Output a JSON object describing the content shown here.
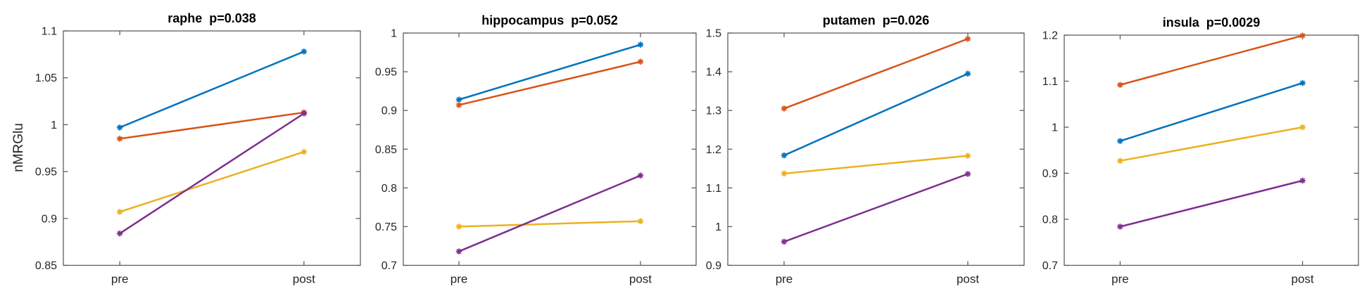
{
  "figure": {
    "background": "#ffffff",
    "axis_color": "#595959",
    "text_color": "#262626"
  },
  "chart_data": [
    {
      "type": "line",
      "region": "raphe",
      "title": "raphe  p=0.038",
      "p_value": "p=0.038",
      "ylabel": "nMRGlu",
      "x_categories": [
        "pre",
        "post"
      ],
      "ylim": [
        0.85,
        1.1
      ],
      "ytick_values": [
        0.85,
        0.9,
        0.95,
        1,
        1.05,
        1.1
      ],
      "ytick_labels": [
        "0.85",
        "0.9",
        "0.95",
        "1",
        "1.05",
        "1.1"
      ],
      "grid": "off",
      "legend": "off",
      "marker": "*",
      "series": [
        {
          "name": "blue",
          "color": "#0072BD",
          "values": [
            0.997,
            1.078
          ]
        },
        {
          "name": "orange",
          "color": "#D95319",
          "values": [
            0.985,
            1.013
          ]
        },
        {
          "name": "yellow",
          "color": "#EDB120",
          "values": [
            0.907,
            0.971
          ]
        },
        {
          "name": "purple",
          "color": "#7E2F8E",
          "values": [
            0.884,
            1.012
          ]
        }
      ]
    },
    {
      "type": "line",
      "region": "hippocampus",
      "title": "hippocampus  p=0.052",
      "p_value": "p=0.052",
      "ylabel": "",
      "x_categories": [
        "pre",
        "post"
      ],
      "ylim": [
        0.7,
        1.0
      ],
      "ytick_values": [
        0.7,
        0.75,
        0.8,
        0.85,
        0.9,
        0.95,
        1
      ],
      "ytick_labels": [
        "0.7",
        "0.75",
        "0.8",
        "0.85",
        "0.9",
        "0.95",
        "1"
      ],
      "grid": "off",
      "legend": "off",
      "marker": "*",
      "series": [
        {
          "name": "blue",
          "color": "#0072BD",
          "values": [
            0.914,
            0.985
          ]
        },
        {
          "name": "orange",
          "color": "#D95319",
          "values": [
            0.907,
            0.963
          ]
        },
        {
          "name": "yellow",
          "color": "#EDB120",
          "values": [
            0.75,
            0.757
          ]
        },
        {
          "name": "purple",
          "color": "#7E2F8E",
          "values": [
            0.718,
            0.816
          ]
        }
      ]
    },
    {
      "type": "line",
      "region": "putamen",
      "title": "putamen  p=0.026",
      "p_value": "p=0.026",
      "ylabel": "",
      "x_categories": [
        "pre",
        "post"
      ],
      "ylim": [
        0.9,
        1.5
      ],
      "ytick_values": [
        0.9,
        1,
        1.1,
        1.2,
        1.3,
        1.4,
        1.5
      ],
      "ytick_labels": [
        "0.9",
        "1",
        "1.1",
        "1.2",
        "1.3",
        "1.4",
        "1.5"
      ],
      "grid": "off",
      "legend": "off",
      "marker": "*",
      "series": [
        {
          "name": "blue",
          "color": "#0072BD",
          "values": [
            1.184,
            1.395
          ]
        },
        {
          "name": "orange",
          "color": "#D95319",
          "values": [
            1.305,
            1.485
          ]
        },
        {
          "name": "yellow",
          "color": "#EDB120",
          "values": [
            1.137,
            1.183
          ]
        },
        {
          "name": "purple",
          "color": "#7E2F8E",
          "values": [
            0.961,
            1.136
          ]
        }
      ]
    },
    {
      "type": "line",
      "region": "insula",
      "title": "insula  p=0.0029",
      "p_value": "p=0.0029",
      "ylabel": "",
      "x_categories": [
        "pre",
        "post"
      ],
      "ylim": [
        0.7,
        1.2
      ],
      "ytick_values": [
        0.7,
        0.8,
        0.9,
        1,
        1.1,
        1.2
      ],
      "ytick_labels": [
        "0.7",
        "0.8",
        "0.9",
        "1",
        "1.1",
        "1.2"
      ],
      "grid": "off",
      "legend": "off",
      "marker": "*",
      "series": [
        {
          "name": "blue",
          "color": "#0072BD",
          "values": [
            0.97,
            1.096
          ]
        },
        {
          "name": "orange",
          "color": "#D95319",
          "values": [
            1.092,
            1.199
          ]
        },
        {
          "name": "yellow",
          "color": "#EDB120",
          "values": [
            0.927,
            1.0
          ]
        },
        {
          "name": "purple",
          "color": "#7E2F8E",
          "values": [
            0.784,
            0.884
          ]
        }
      ]
    }
  ]
}
